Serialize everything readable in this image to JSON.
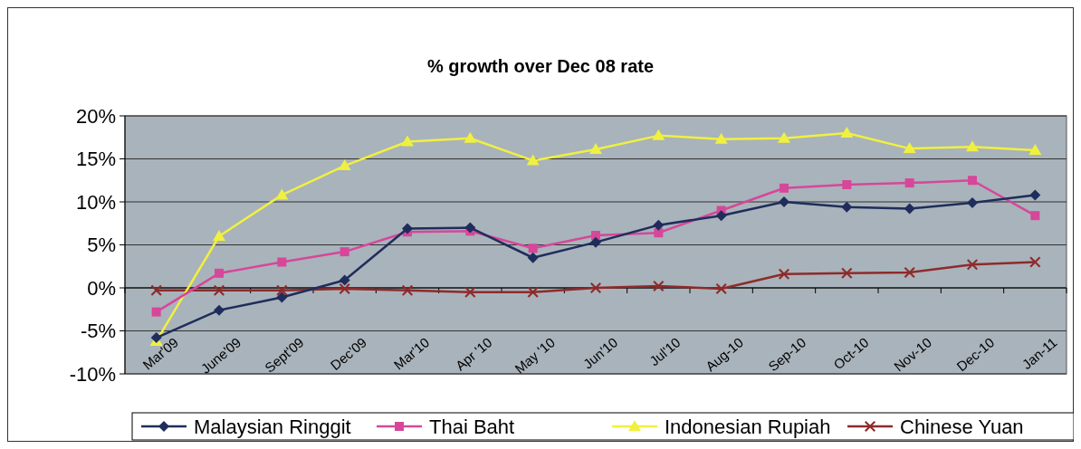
{
  "chart_data": {
    "type": "line",
    "title": "% growth over Dec 08 rate",
    "categories": [
      "Mar'09",
      "June'09",
      "Sept'09",
      "Dec'09",
      "Mar'10",
      "Apr '10",
      "May '10",
      "Jun'10",
      "Jul'10",
      "Aug-10",
      "Sep-10",
      "Oct-10",
      "Nov-10",
      "Dec-10",
      "Jan-11"
    ],
    "series": [
      {
        "name": "Malaysian Ringgit",
        "color": "#1f2d5c",
        "marker": "diamond",
        "values": [
          -5.8,
          -2.6,
          -1.1,
          0.9,
          6.9,
          7.0,
          3.5,
          5.3,
          7.3,
          8.4,
          10.0,
          9.4,
          9.2,
          9.9,
          10.8
        ]
      },
      {
        "name": "Thai Baht",
        "color": "#d6479a",
        "marker": "square",
        "values": [
          -2.8,
          1.7,
          3.0,
          4.2,
          6.5,
          6.6,
          4.6,
          6.1,
          6.4,
          9.0,
          11.6,
          12.0,
          12.2,
          12.5,
          8.4
        ]
      },
      {
        "name": "Indonesian Rupiah",
        "color": "#f0f040",
        "marker": "triangle",
        "values": [
          -6.2,
          6.0,
          10.8,
          14.2,
          17.0,
          17.4,
          14.8,
          16.1,
          17.7,
          17.3,
          17.4,
          18.0,
          16.2,
          16.4,
          16.0
        ]
      },
      {
        "name": "Chinese Yuan",
        "color": "#8e2b2b",
        "marker": "cross",
        "values": [
          -0.3,
          -0.3,
          -0.3,
          -0.1,
          -0.3,
          -0.5,
          -0.5,
          0.0,
          0.2,
          -0.1,
          1.6,
          1.7,
          1.8,
          2.7,
          3.0
        ]
      }
    ],
    "ylim": [
      -10,
      20
    ],
    "yticks": [
      {
        "value": -10,
        "label": "-10%"
      },
      {
        "value": -5,
        "label": "-5%"
      },
      {
        "value": 0,
        "label": "0%"
      },
      {
        "value": 5,
        "label": "5%"
      },
      {
        "value": 10,
        "label": "10%"
      },
      {
        "value": 15,
        "label": "15%"
      },
      {
        "value": 20,
        "label": "20%"
      }
    ],
    "grid": "y",
    "legend": "bottom"
  }
}
